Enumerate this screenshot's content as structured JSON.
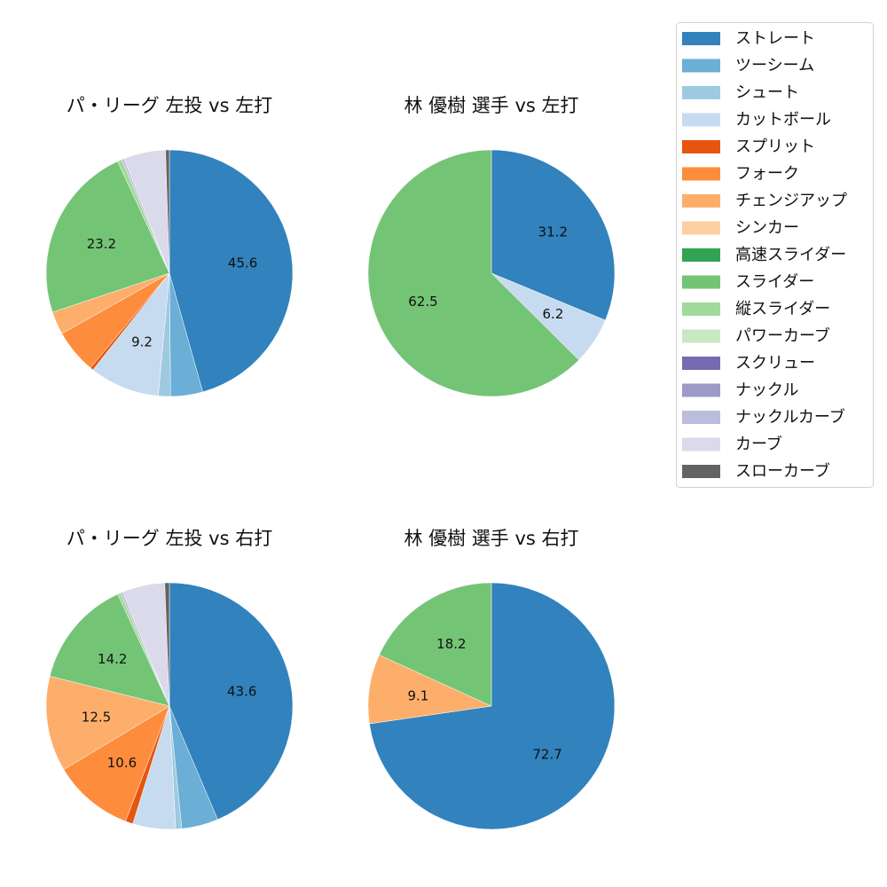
{
  "legend": {
    "entries": [
      {
        "name": "ストレート",
        "color": "#3182bd"
      },
      {
        "name": "ツーシーム",
        "color": "#6baed6"
      },
      {
        "name": "シュート",
        "color": "#9ecae1"
      },
      {
        "name": "カットボール",
        "color": "#c6dbef"
      },
      {
        "name": "スプリット",
        "color": "#e6550d"
      },
      {
        "name": "フォーク",
        "color": "#fd8d3c"
      },
      {
        "name": "チェンジアップ",
        "color": "#fdae6b"
      },
      {
        "name": "シンカー",
        "color": "#fdd0a2"
      },
      {
        "name": "高速スライダー",
        "color": "#31a354"
      },
      {
        "name": "スライダー",
        "color": "#74c476"
      },
      {
        "name": "縦スライダー",
        "color": "#a1d99b"
      },
      {
        "name": "パワーカーブ",
        "color": "#c7e9c0"
      },
      {
        "name": "スクリュー",
        "color": "#756bb1"
      },
      {
        "name": "ナックル",
        "color": "#9e9ac8"
      },
      {
        "name": "ナックルカーブ",
        "color": "#bcbddc"
      },
      {
        "name": "カーブ",
        "color": "#dadaeb"
      },
      {
        "name": "スローカーブ",
        "color": "#636363"
      }
    ]
  },
  "chart_data": [
    {
      "type": "pie",
      "title": "パ・リーグ 左投 vs 左打",
      "slices": [
        {
          "category": "ストレート",
          "value": 45.6,
          "label": "45.6"
        },
        {
          "category": "ツーシーム",
          "value": 4.2,
          "label": ""
        },
        {
          "category": "シュート",
          "value": 1.6,
          "label": ""
        },
        {
          "category": "カットボール",
          "value": 9.2,
          "label": "9.2"
        },
        {
          "category": "スプリット",
          "value": 0.4,
          "label": ""
        },
        {
          "category": "フォーク",
          "value": 5.8,
          "label": ""
        },
        {
          "category": "チェンジアップ",
          "value": 3.0,
          "label": ""
        },
        {
          "category": "スライダー",
          "value": 23.2,
          "label": "23.2"
        },
        {
          "category": "縦スライダー",
          "value": 0.6,
          "label": ""
        },
        {
          "category": "ナックルカーブ",
          "value": 0.3,
          "label": ""
        },
        {
          "category": "カーブ",
          "value": 5.5,
          "label": ""
        },
        {
          "category": "スローカーブ",
          "value": 0.5,
          "label": ""
        }
      ]
    },
    {
      "type": "pie",
      "title": "林 優樹 選手 vs 左打",
      "slices": [
        {
          "category": "ストレート",
          "value": 31.2,
          "label": "31.2"
        },
        {
          "category": "カットボール",
          "value": 6.2,
          "label": "6.2"
        },
        {
          "category": "スライダー",
          "value": 62.5,
          "label": "62.5"
        }
      ]
    },
    {
      "type": "pie",
      "title": "パ・リーグ 左投 vs 右打",
      "slices": [
        {
          "category": "ストレート",
          "value": 43.6,
          "label": "43.6"
        },
        {
          "category": "ツーシーム",
          "value": 4.8,
          "label": ""
        },
        {
          "category": "シュート",
          "value": 0.8,
          "label": ""
        },
        {
          "category": "カットボール",
          "value": 5.6,
          "label": ""
        },
        {
          "category": "スプリット",
          "value": 1.0,
          "label": ""
        },
        {
          "category": "フォーク",
          "value": 10.6,
          "label": "10.6"
        },
        {
          "category": "チェンジアップ",
          "value": 12.5,
          "label": "12.5"
        },
        {
          "category": "スライダー",
          "value": 14.2,
          "label": "14.2"
        },
        {
          "category": "縦スライダー",
          "value": 0.4,
          "label": ""
        },
        {
          "category": "ナックルカーブ",
          "value": 0.3,
          "label": ""
        },
        {
          "category": "カーブ",
          "value": 5.6,
          "label": ""
        },
        {
          "category": "スローカーブ",
          "value": 0.6,
          "label": ""
        }
      ]
    },
    {
      "type": "pie",
      "title": "林 優樹 選手 vs 右打",
      "slices": [
        {
          "category": "ストレート",
          "value": 72.7,
          "label": "72.7"
        },
        {
          "category": "チェンジアップ",
          "value": 9.1,
          "label": "9.1"
        },
        {
          "category": "スライダー",
          "value": 18.2,
          "label": "18.2"
        }
      ]
    }
  ]
}
